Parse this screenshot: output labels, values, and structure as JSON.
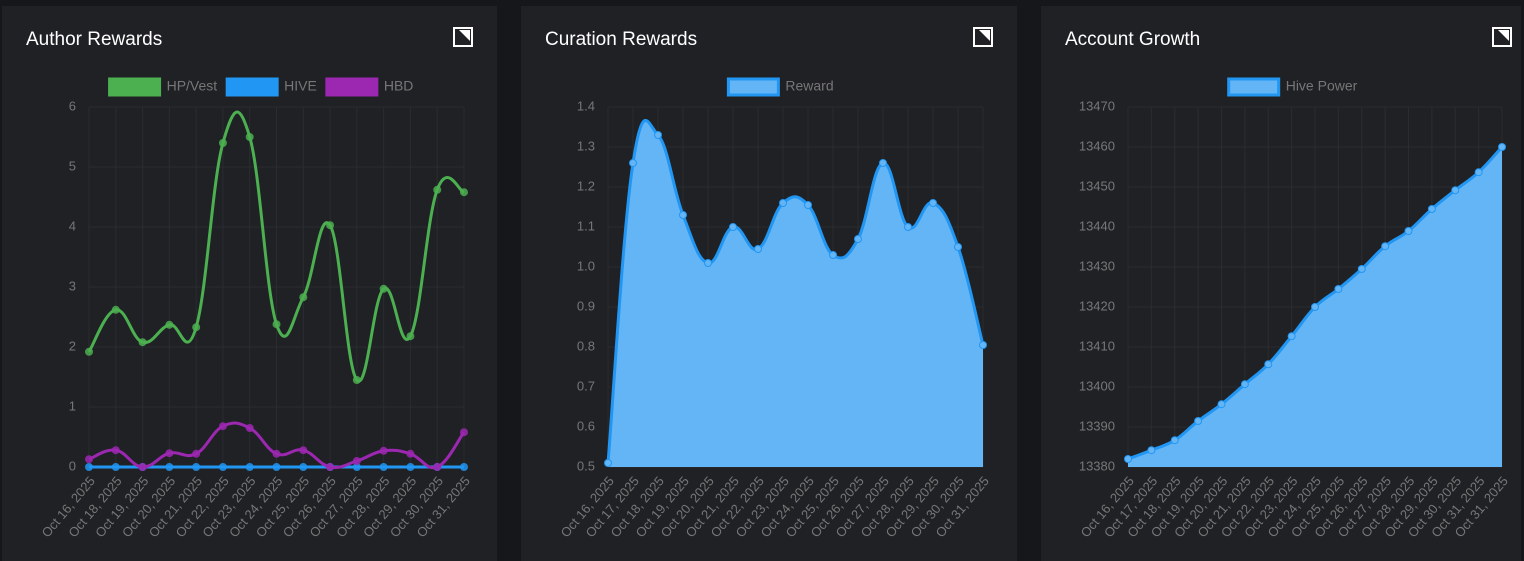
{
  "chart_data": [
    {
      "type": "line",
      "title": "Author Rewards",
      "smooth": true,
      "grid": true,
      "categories": [
        "Oct 16, 2025",
        "Oct 18, 2025",
        "Oct 19, 2025",
        "Oct 20, 2025",
        "Oct 21, 2025",
        "Oct 22, 2025",
        "Oct 23, 2025",
        "Oct 24, 2025",
        "Oct 25, 2025",
        "Oct 26, 2025",
        "Oct 27, 2025",
        "Oct 28, 2025",
        "Oct 29, 2025",
        "Oct 30, 2025",
        "Oct 31, 2025"
      ],
      "series": [
        {
          "name": "HP/Vest",
          "color": "#4caf50",
          "values": [
            1.92,
            2.62,
            2.08,
            2.37,
            2.33,
            5.4,
            5.5,
            2.38,
            2.83,
            4.03,
            1.45,
            2.97,
            2.18,
            4.62,
            4.58
          ]
        },
        {
          "name": "HIVE",
          "color": "#2196f3",
          "values": [
            0,
            0,
            0,
            0,
            0,
            0,
            0,
            0,
            0,
            0,
            0,
            0,
            0,
            0,
            0
          ]
        },
        {
          "name": "HBD",
          "color": "#9c27b0",
          "values": [
            0.13,
            0.28,
            0,
            0.23,
            0.22,
            0.68,
            0.65,
            0.22,
            0.28,
            0,
            0.1,
            0.27,
            0.22,
            0,
            0.58
          ]
        }
      ],
      "ylim": [
        0,
        6
      ],
      "yticks": [
        0,
        1,
        2,
        3,
        4,
        5,
        6
      ]
    },
    {
      "type": "area",
      "title": "Curation Rewards",
      "smooth": true,
      "grid": true,
      "categories": [
        "Oct 16, 2025",
        "Oct 17, 2025",
        "Oct 18, 2025",
        "Oct 19, 2025",
        "Oct 20, 2025",
        "Oct 21, 2025",
        "Oct 22, 2025",
        "Oct 23, 2025",
        "Oct 24, 2025",
        "Oct 25, 2025",
        "Oct 26, 2025",
        "Oct 27, 2025",
        "Oct 28, 2025",
        "Oct 29, 2025",
        "Oct 30, 2025",
        "Oct 31, 2025"
      ],
      "series": [
        {
          "name": "Reward",
          "color": "#2196f3",
          "fill": "#64b5f6",
          "values": [
            0.51,
            1.26,
            1.33,
            1.13,
            1.01,
            1.1,
            1.045,
            1.16,
            1.155,
            1.03,
            1.07,
            1.26,
            1.1,
            1.16,
            1.05,
            0.805
          ]
        }
      ],
      "ylim": [
        0.5,
        1.4
      ],
      "yticks": [
        0.5,
        0.6,
        0.7,
        0.8,
        0.9,
        {
          "value": 1,
          "label": "1.0"
        },
        1.1,
        1.2,
        1.3,
        1.4
      ]
    },
    {
      "type": "area",
      "title": "Account Growth",
      "smooth": true,
      "grid": true,
      "categories": [
        "Oct 16, 2025",
        "Oct 17, 2025",
        "Oct 18, 2025",
        "Oct 19, 2025",
        "Oct 20, 2025",
        "Oct 21, 2025",
        "Oct 22, 2025",
        "Oct 23, 2025",
        "Oct 24, 2025",
        "Oct 25, 2025",
        "Oct 26, 2025",
        "Oct 27, 2025",
        "Oct 28, 2025",
        "Oct 29, 2025",
        "Oct 30, 2025",
        "Oct 31, 2025",
        "Oct 31, 2025"
      ],
      "series": [
        {
          "name": "Hive Power",
          "color": "#2196f3",
          "fill": "#64b5f6",
          "values": [
            13382,
            13384.2,
            13386.7,
            13391.5,
            13395.7,
            13400.7,
            13405.7,
            13412.7,
            13420,
            13424.5,
            13429.5,
            13435.2,
            13439,
            13444.5,
            13449.2,
            13453.7,
            13460
          ]
        }
      ],
      "ylim": [
        13380,
        13470
      ],
      "yticks": [
        13380,
        13390,
        13400,
        13410,
        13420,
        13430,
        13440,
        13450,
        13460,
        13470
      ]
    }
  ]
}
